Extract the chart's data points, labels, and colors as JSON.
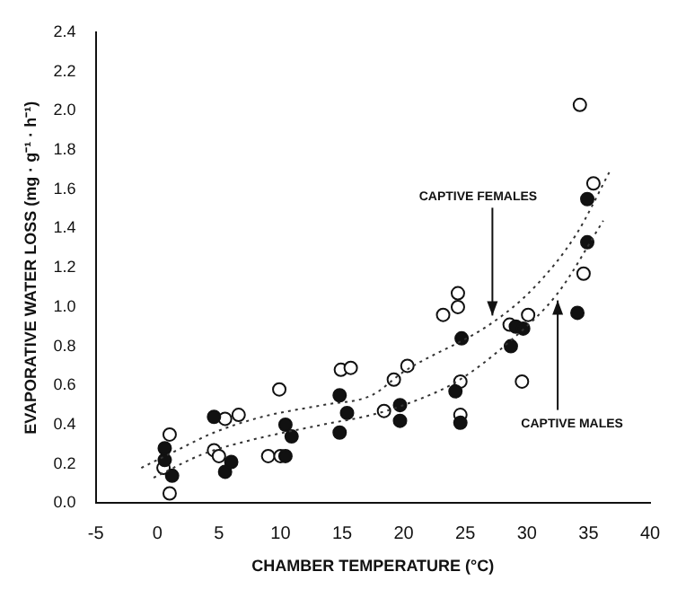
{
  "chart_data": {
    "type": "scatter",
    "xlabel": "CHAMBER TEMPERATURE (°C)",
    "ylabel": "EVAPORATIVE WATER LOSS (mg · g⁻¹ · h⁻¹)",
    "xlim": [
      -5,
      40
    ],
    "xticks": [
      -5,
      0,
      5,
      10,
      15,
      20,
      25,
      30,
      35,
      40
    ],
    "ylim": [
      0,
      2.4
    ],
    "yticks": [
      {
        "value": 0,
        "label": "0.0"
      },
      {
        "value": 0.2,
        "label": "0.2"
      },
      {
        "value": 0.4,
        "label": "0.4"
      },
      {
        "value": 0.6,
        "label": "0.6"
      },
      {
        "value": 0.8,
        "label": "0.8"
      },
      {
        "value": 1,
        "label": "1.0"
      },
      {
        "value": 1.2,
        "label": "1.2"
      },
      {
        "value": 1.4,
        "label": "1.4"
      },
      {
        "value": 1.6,
        "label": "1.6"
      },
      {
        "value": 1.8,
        "label": "1.8"
      },
      {
        "value": 2,
        "label": "2.0"
      },
      {
        "value": 2.2,
        "label": "2.2"
      },
      {
        "value": 2.4,
        "label": "2.4"
      }
    ],
    "grid": false,
    "legend": false,
    "series": [
      {
        "type": "scatter",
        "marker": "circle",
        "color": "#ffffff",
        "x": [
          1,
          1,
          0.5,
          4.6,
          5,
          5.5,
          6.6,
          9,
          9.9,
          10,
          14.9,
          15.7,
          18.4,
          19.2,
          20.3,
          23.2,
          24.4,
          24.4,
          24.6,
          24.6,
          28.6,
          30.1,
          29.6,
          34.3,
          35.4,
          34.6
        ],
        "values": [
          0.35,
          0.05,
          0.18,
          0.27,
          0.24,
          0.43,
          0.45,
          0.24,
          0.58,
          0.24,
          0.68,
          0.69,
          0.47,
          0.63,
          0.7,
          0.96,
          1,
          1.07,
          0.62,
          0.45,
          0.91,
          0.96,
          0.62,
          2.03,
          1.63,
          1.17
        ]
      },
      {
        "type": "scatter",
        "marker": "circle",
        "color": "#111111",
        "x": [
          0.6,
          0.6,
          1.2,
          4.6,
          5.5,
          6,
          10.4,
          10.9,
          10.4,
          14.8,
          15.4,
          14.8,
          19.7,
          19.7,
          24.7,
          24.2,
          24.6,
          28.7,
          29.1,
          29.7,
          34.9,
          34.9,
          34.1
        ],
        "values": [
          0.28,
          0.22,
          0.14,
          0.44,
          0.16,
          0.21,
          0.4,
          0.34,
          0.24,
          0.55,
          0.46,
          0.36,
          0.5,
          0.42,
          0.84,
          0.57,
          0.41,
          0.8,
          0.9,
          0.89,
          1.55,
          1.33,
          0.97
        ]
      },
      {
        "type": "line",
        "marker": "none",
        "line_style": "dotted",
        "color": "#333333",
        "x": [
          -1.3,
          1.6,
          4.6,
          8.5,
          13.4,
          17.4,
          20,
          27.2,
          30.6,
          34,
          36.8
        ],
        "values": [
          0.18,
          0.27,
          0.36,
          0.44,
          0.5,
          0.55,
          0.67,
          0.92,
          1.1,
          1.37,
          1.7
        ]
      },
      {
        "type": "line",
        "marker": "none",
        "line_style": "dotted",
        "color": "#333333",
        "x": [
          -0.3,
          3.7,
          7.5,
          13.4,
          17.4,
          20,
          24.3,
          28.7,
          32.5,
          36.2
        ],
        "values": [
          0.13,
          0.25,
          0.32,
          0.4,
          0.45,
          0.5,
          0.62,
          0.83,
          1.07,
          1.44
        ]
      }
    ],
    "annotations": [
      {
        "text": "CAPTIVE FEMALES",
        "x": 27.2,
        "y": 0.92
      },
      {
        "text": "CAPTIVE MALES",
        "x": 32.5,
        "y": 1.07
      }
    ]
  }
}
